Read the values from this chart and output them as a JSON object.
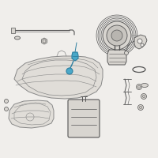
{
  "bg_color": "#f0eeeb",
  "line_color": "#555555",
  "highlight_color": "#4aa8c8",
  "highlight_color2": "#2e7fa0",
  "tank_color": "#e0ddd8",
  "tank_stroke": "#888888",
  "part_color": "#d8d5d0",
  "part_stroke": "#666666"
}
